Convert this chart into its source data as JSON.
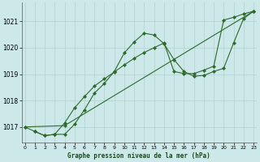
{
  "title": "Graphe pression niveau de la mer (hPa)",
  "background_color": "#cce8e8",
  "grid_color": "#b0d0d0",
  "line_color": "#2d6a2d",
  "xlim": [
    -0.3,
    23.3
  ],
  "ylim": [
    1016.4,
    1021.7
  ],
  "yticks": [
    1017,
    1018,
    1019,
    1020,
    1021
  ],
  "xticks": [
    0,
    1,
    2,
    3,
    4,
    5,
    6,
    7,
    8,
    9,
    10,
    11,
    12,
    13,
    14,
    15,
    16,
    17,
    18,
    19,
    20,
    21,
    22,
    23
  ],
  "series1_x": [
    0,
    1,
    2,
    3,
    4,
    5,
    6,
    7,
    8,
    9,
    10,
    11,
    12,
    13,
    14,
    15,
    16,
    17,
    18,
    19,
    20,
    21,
    22,
    23
  ],
  "series1_y": [
    1017.0,
    1016.83,
    1016.67,
    1016.72,
    1016.72,
    1017.1,
    1017.65,
    1018.28,
    1018.65,
    1019.1,
    1019.8,
    1020.22,
    1020.55,
    1020.48,
    1020.15,
    1019.55,
    1019.1,
    1018.92,
    1018.95,
    1019.1,
    1019.22,
    1020.18,
    1021.1,
    1021.38
  ],
  "series2_x": [
    0,
    4,
    23
  ],
  "series2_y": [
    1017.0,
    1017.05,
    1021.38
  ],
  "series3_x": [
    1,
    2,
    3,
    4,
    5,
    6,
    7,
    8,
    9,
    10,
    11,
    12,
    13,
    14,
    15,
    16,
    17,
    18,
    19,
    20,
    21,
    22,
    23
  ],
  "series3_y": [
    1016.83,
    1016.67,
    1016.72,
    1017.15,
    1017.72,
    1018.15,
    1018.55,
    1018.82,
    1019.08,
    1019.35,
    1019.6,
    1019.82,
    1020.0,
    1020.18,
    1019.1,
    1019.02,
    1019.02,
    1019.15,
    1019.3,
    1021.05,
    1021.15,
    1021.28,
    1021.38
  ]
}
